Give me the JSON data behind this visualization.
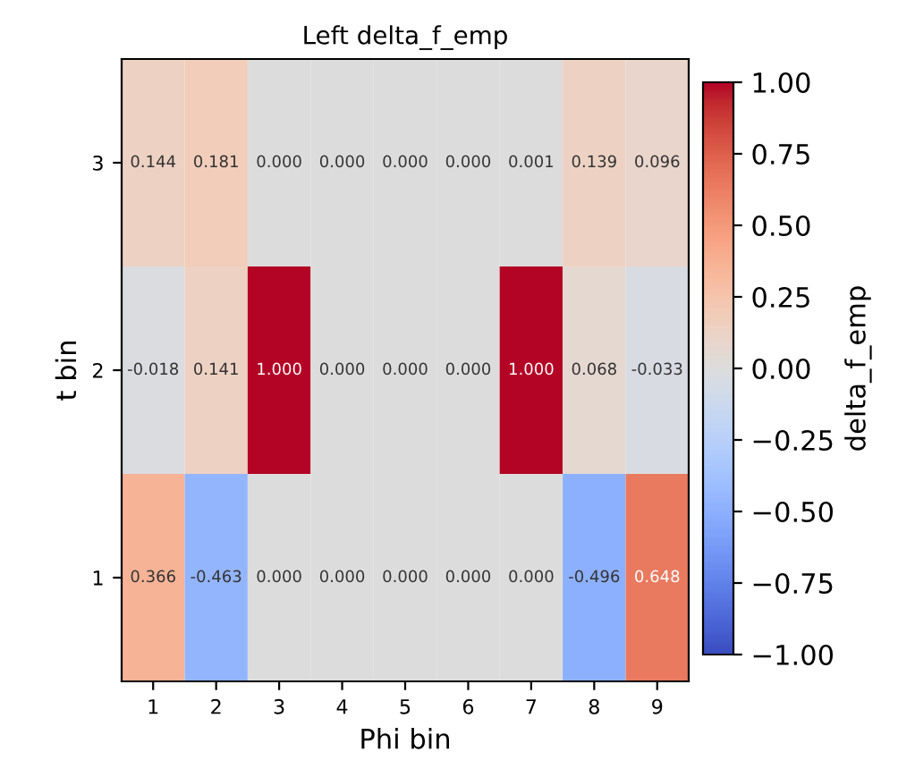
{
  "chart_data": {
    "type": "heatmap",
    "title": "Left delta_f_emp",
    "xlabel": "Phi bin",
    "ylabel": "t bin",
    "clabel": "delta_f_emp",
    "categories": [
      "1",
      "2",
      "3",
      "4",
      "5",
      "6",
      "7",
      "8",
      "9"
    ],
    "y_categories": [
      "3",
      "2",
      "1"
    ],
    "cells": [
      [
        0.144,
        0.181,
        0.0,
        0.0,
        0.0,
        0.0,
        0.001,
        0.139,
        0.096
      ],
      [
        -0.018,
        0.141,
        1.0,
        0.0,
        0.0,
        0.0,
        1.0,
        0.068,
        -0.033
      ],
      [
        0.366,
        -0.463,
        0.0,
        0.0,
        0.0,
        0.0,
        0.0,
        -0.496,
        0.648
      ]
    ],
    "cell_labels": [
      [
        "0.144",
        "0.181",
        "0.000",
        "0.000",
        "0.000",
        "0.000",
        "0.001",
        "0.139",
        "0.096"
      ],
      [
        "-0.018",
        "0.141",
        "1.000",
        "0.000",
        "0.000",
        "0.000",
        "1.000",
        "0.068",
        "-0.033"
      ],
      [
        "0.366",
        "-0.463",
        "0.000",
        "0.000",
        "0.000",
        "0.000",
        "0.000",
        "-0.496",
        "0.648"
      ]
    ],
    "clim": [
      -1,
      1
    ],
    "cticks": [
      {
        "value": -1,
        "label": "−1.00"
      },
      {
        "value": -0.75,
        "label": "−0.75"
      },
      {
        "value": -0.5,
        "label": "−0.50"
      },
      {
        "value": -0.25,
        "label": "−0.25"
      },
      {
        "value": 0,
        "label": "0.00"
      },
      {
        "value": 0.25,
        "label": "0.25"
      },
      {
        "value": 0.5,
        "label": "0.50"
      },
      {
        "value": 0.75,
        "label": "0.75"
      },
      {
        "value": 1,
        "label": "1.00"
      }
    ]
  }
}
